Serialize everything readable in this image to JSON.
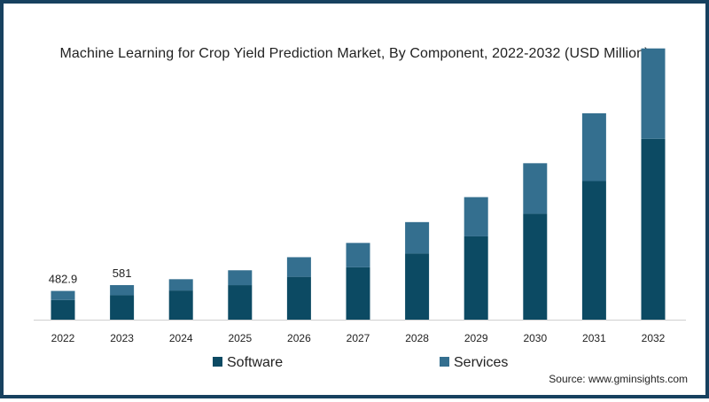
{
  "chart_data": {
    "type": "bar",
    "stacked": true,
    "title": "Machine Learning for Crop Yield Prediction Market, By Component, 2022-2032 (USD Million)",
    "categories": [
      "2022",
      "2023",
      "2024",
      "2025",
      "2026",
      "2027",
      "2028",
      "2029",
      "2030",
      "2031",
      "2032"
    ],
    "series": [
      {
        "name": "Software",
        "color": "#0c4a63",
        "values": [
          330,
          410,
          490,
          580,
          720,
          880,
          1110,
          1400,
          1780,
          2330,
          3040
        ]
      },
      {
        "name": "Services",
        "color": "#346f8f",
        "values": [
          152.9,
          171,
          190,
          250,
          330,
          410,
          530,
          660,
          850,
          1140,
          1520
        ]
      }
    ],
    "totals_labels": [
      {
        "category": "2022",
        "text": "482.9"
      },
      {
        "category": "2023",
        "text": "581"
      }
    ],
    "ylim": [
      0,
      4600
    ],
    "legend_position": "bottom",
    "grid": false
  },
  "source": "Source: www.gminsights.com"
}
